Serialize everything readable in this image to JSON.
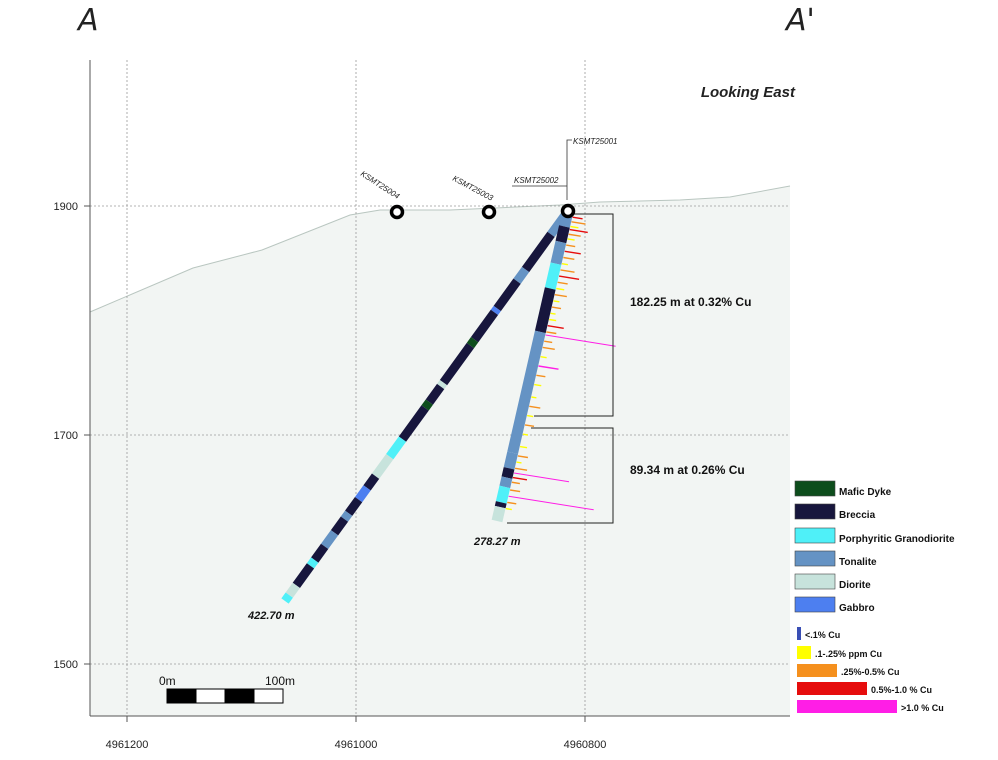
{
  "section": {
    "left_label": "A",
    "right_label": "A'",
    "view_label": "Looking East"
  },
  "colors": {
    "terrain_fill": "#f2f5f3",
    "terrain_line": "#b9c6c0",
    "grid": "#9a9a9a",
    "collar": "#000000"
  },
  "axes": {
    "elevation_ticks": [
      {
        "value": 1900,
        "label": "1900"
      },
      {
        "value": 1700,
        "label": "1700"
      },
      {
        "value": 1500,
        "label": "1500"
      }
    ],
    "northing_ticks": [
      {
        "value": 4961200,
        "label": "4961200"
      },
      {
        "value": 4961000,
        "label": "4961000"
      },
      {
        "value": 4960800,
        "label": "4960800"
      }
    ]
  },
  "drillholes": [
    {
      "id": "KSMT25004"
    },
    {
      "id": "KSMT25003"
    },
    {
      "id": "KSMT25002"
    },
    {
      "id": "KSMT25001"
    }
  ],
  "end_depths": {
    "left_hole": "422.70 m",
    "right_hole": "278.27 m"
  },
  "intervals": [
    {
      "label": "182.25 m at 0.32% Cu"
    },
    {
      "label": "89.34 m at 0.26% Cu"
    }
  ],
  "scale_bar": {
    "start_label": "0m",
    "end_label": "100m"
  },
  "legend": {
    "lithology": [
      {
        "label": "Mafic Dyke",
        "color": "#0d4d1c"
      },
      {
        "label": "Breccia",
        "color": "#17163d"
      },
      {
        "label": "Porphyritic Granodiorite",
        "color": "#4ff0f8"
      },
      {
        "label": "Tonalite",
        "color": "#6593c4"
      },
      {
        "label": "Diorite",
        "color": "#c7e3dc"
      },
      {
        "label": "Gabbro",
        "color": "#4d7ff0"
      }
    ],
    "grade": [
      {
        "label": "<.1% Cu",
        "color": "#3a4fb5"
      },
      {
        "label": ".1-.25% ppm Cu",
        "color": "#ffff00"
      },
      {
        "label": ".25%-0.5% Cu",
        "color": "#f5901e"
      },
      {
        "label": "0.5%-1.0 % Cu",
        "color": "#e60d0d"
      },
      {
        "label": ">1.0 % Cu",
        "color": "#ff1ee6"
      }
    ]
  }
}
